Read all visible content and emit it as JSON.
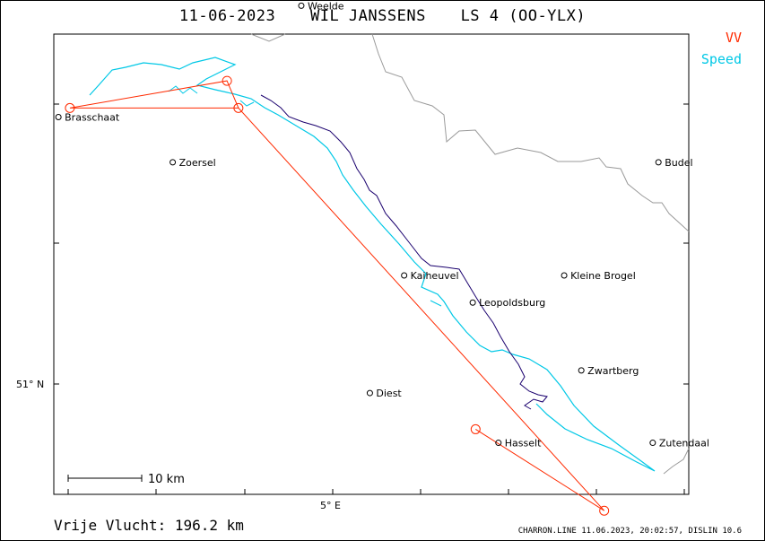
{
  "header": {
    "date": "11-06-2023",
    "pilot": "WIL JANSSENS",
    "glider": "LS 4 (OO-YLX)"
  },
  "legend": {
    "vv_label": "VV",
    "speed_label": "Speed",
    "vv_color": "#ff2a00",
    "speed_color": "#00c8e6",
    "track_color": "#1a006e"
  },
  "map": {
    "places": [
      {
        "name": "Weelde",
        "lon": 4.945,
        "lat": 51.418
      },
      {
        "name": "Brasschaat",
        "lon": 4.52,
        "lat": 51.295
      },
      {
        "name": "Zoersel",
        "lon": 4.72,
        "lat": 51.245
      },
      {
        "name": "Budel",
        "lon": 5.57,
        "lat": 51.245
      },
      {
        "name": "Kaiheuvel",
        "lon": 5.125,
        "lat": 51.12
      },
      {
        "name": "Kleine Brogel",
        "lon": 5.405,
        "lat": 51.12
      },
      {
        "name": "Leopoldsburg",
        "lon": 5.245,
        "lat": 51.09
      },
      {
        "name": "Zwartberg",
        "lon": 5.435,
        "lat": 51.015
      },
      {
        "name": "Diest",
        "lon": 5.065,
        "lat": 50.99
      },
      {
        "name": "Hasselt",
        "lon": 5.29,
        "lat": 50.935
      },
      {
        "name": "Zutendaal",
        "lon": 5.56,
        "lat": 50.935
      }
    ],
    "axis": {
      "lat_label": "51° N",
      "lon_label": "5° E"
    },
    "scale_bar": {
      "label": "10  km"
    },
    "turnpoints": [
      {
        "lon": 4.54,
        "lat": 51.305
      },
      {
        "lon": 4.815,
        "lat": 51.335
      },
      {
        "lon": 4.835,
        "lat": 51.305
      },
      {
        "lon": 5.25,
        "lat": 50.95
      },
      {
        "lon": 5.475,
        "lat": 50.86
      }
    ]
  },
  "footer": {
    "distance_text": "Vrije Vlucht:  196.2 km",
    "generator_text": "CHARRON.LINE 11.06.2023, 20:02:57, DISLIN 10.6"
  }
}
